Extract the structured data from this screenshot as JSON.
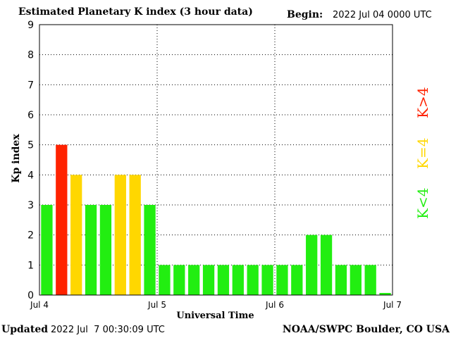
{
  "header": {
    "title": "Estimated Planetary K index (3 hour data)",
    "begin_label": "Begin:",
    "begin_value": "2022 Jul 04 0000 UTC"
  },
  "footer": {
    "updated_label": "Updated",
    "updated_value": "2022 Jul  7 00:30:09 UTC",
    "credit": "NOAA/SWPC Boulder, CO USA"
  },
  "legend": {
    "below": "K<4",
    "equal": "K=4",
    "above": "K>4"
  },
  "colors": {
    "below": "#22ee11",
    "equal": "#ffd700",
    "above": "#ff2200",
    "grid": "#000000"
  },
  "chart_data": {
    "type": "bar",
    "xlabel": "Universal Time",
    "ylabel": "Kp index",
    "ylim": [
      0,
      9
    ],
    "yticks": [
      0,
      1,
      2,
      3,
      4,
      5,
      6,
      7,
      8,
      9
    ],
    "x_tick_labels": [
      "Jul 4",
      "Jul 5",
      "Jul 6",
      "Jul 7"
    ],
    "interval_hours": 3,
    "values": [
      3,
      5,
      4,
      3,
      3,
      4,
      4,
      3,
      1,
      1,
      1,
      1,
      1,
      1,
      1,
      1,
      1,
      1,
      2,
      2,
      1,
      1,
      1,
      0.07
    ],
    "grid": true
  }
}
